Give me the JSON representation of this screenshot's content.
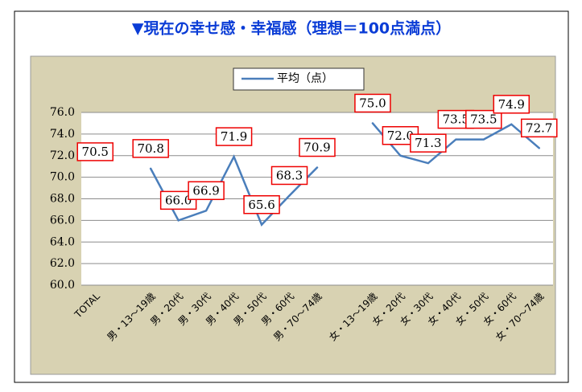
{
  "chart_data": {
    "type": "line",
    "title": "▼現在の幸せ感・幸福感（理想＝100点満点）",
    "categories": [
      "TOTAL",
      null,
      "男・13～19歳",
      "男・20代",
      "男・30代",
      "男・40代",
      "男・50代",
      "男・60代",
      "男・70～74歳",
      null,
      "女・13～19歳",
      "女・20代",
      "女・30代",
      "女・40代",
      "女・50代",
      "女・60代",
      "女・70～74歳"
    ],
    "series": [
      {
        "name": "平均（点）",
        "color": "#4a7ebb",
        "values": [
          70.5,
          null,
          70.8,
          66.0,
          66.9,
          71.9,
          65.6,
          68.3,
          70.9,
          null,
          75.0,
          72.0,
          71.3,
          73.5,
          73.5,
          74.9,
          72.7
        ],
        "value_labels": [
          "70.5",
          null,
          "70.8",
          "66.0",
          "66.9",
          "71.9",
          "65.6",
          "68.3",
          "70.9",
          null,
          "75.0",
          "72.0",
          "71.3",
          "73.5",
          "73.5",
          "74.9",
          "72.7"
        ]
      }
    ],
    "ylim": [
      60,
      76
    ],
    "yticks": [
      {
        "value": 60,
        "label": "60.0"
      },
      {
        "value": 62,
        "label": "62.0"
      },
      {
        "value": 64,
        "label": "64.0"
      },
      {
        "value": 66,
        "label": "66.0"
      },
      {
        "value": 68,
        "label": "68.0"
      },
      {
        "value": 70,
        "label": "70.0"
      },
      {
        "value": 72,
        "label": "72.0"
      },
      {
        "value": 74,
        "label": "74.0"
      },
      {
        "value": 76,
        "label": "76.0"
      }
    ],
    "grid": true,
    "legend": "top"
  }
}
